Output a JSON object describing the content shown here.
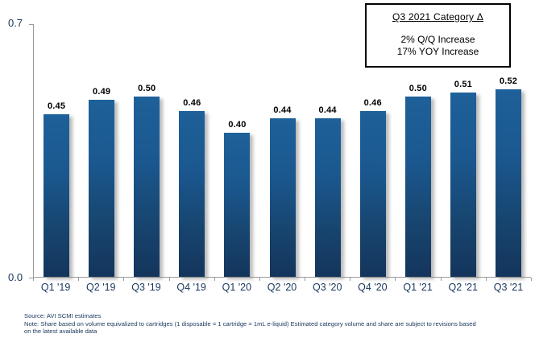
{
  "chart_data": {
    "type": "bar",
    "categories": [
      "Q1 '19",
      "Q2 '19",
      "Q3 '19",
      "Q4 '19",
      "Q1 '20",
      "Q2 '20",
      "Q3 '20",
      "Q4 '20",
      "Q1 '21",
      "Q2 '21",
      "Q3 '21"
    ],
    "values": [
      0.45,
      0.49,
      0.5,
      0.46,
      0.4,
      0.44,
      0.44,
      0.46,
      0.5,
      0.51,
      0.52
    ],
    "value_labels": [
      "0.45",
      "0.49",
      "0.50",
      "0.46",
      "0.40",
      "0.44",
      "0.44",
      "0.46",
      "0.50",
      "0.51",
      "0.52"
    ],
    "title": "",
    "xlabel": "",
    "ylabel": "",
    "ylim": [
      0.0,
      0.7
    ],
    "y_ticks": [
      "0.7",
      "0.0"
    ],
    "grid": "off",
    "legend": "none",
    "bar_color_top": "#1e6099",
    "bar_color_bottom": "#14355c"
  },
  "callout": {
    "title": "Q3 2021 Category Δ",
    "line1": "2% Q/Q Increase",
    "line2": "17% YOY Increase"
  },
  "footer": {
    "source": "Source: AVI SCMI estimates",
    "note_line1": "Note: Share based on volume equivalized to cartridges (1 disposable = 1 cartridge = 1mL e-liquid) Estimated category volume and share are subject to revisions based",
    "note_line2": "on the latest available data"
  }
}
